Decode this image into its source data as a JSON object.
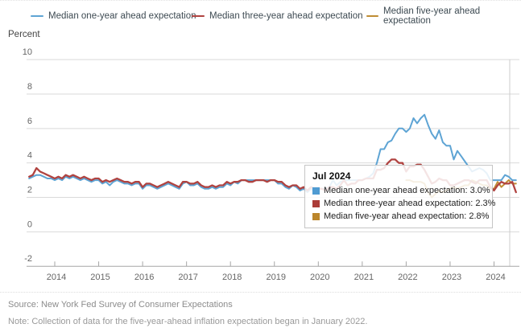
{
  "legend": {
    "items": [
      {
        "label": "Median one-year ahead expectation",
        "color": "#5ea4d4"
      },
      {
        "label": "Median three-year ahead expectation",
        "color": "#b04340"
      },
      {
        "label": "Median five-year ahead expectation",
        "color": "#bf8c33"
      }
    ]
  },
  "y_axis": {
    "title": "Percent"
  },
  "tooltip": {
    "title": "Jul 2024",
    "rows": [
      {
        "label": "Median one-year ahead expectation",
        "value": "3.0%",
        "text": "Median one-year ahead expectation: 3.0%",
        "color": "#4f9bd2"
      },
      {
        "label": "Median three-year ahead expectation",
        "value": "2.3%",
        "text": "Median three-year ahead expectation: 2.3%",
        "color": "#ab3c38"
      },
      {
        "label": "Median five-year ahead expectation",
        "value": "2.8%",
        "text": "Median five-year ahead expectation: 2.8%",
        "color": "#bb862b"
      }
    ]
  },
  "footer": {
    "source": "Source: New York Fed Survey of Consumer Expectations",
    "note": "Note: Collection of data for the five-year-ahead inflation expectation began in January 2022."
  },
  "chart_data": {
    "type": "line",
    "title": "",
    "xlabel": "",
    "ylabel": "Percent",
    "ylim": [
      -2,
      10
    ],
    "yticks": [
      10,
      8,
      6,
      4,
      2,
      0,
      -2
    ],
    "xtick_years": [
      2014,
      2015,
      2016,
      2017,
      2018,
      2019,
      2020,
      2021,
      2022,
      2023,
      2024
    ],
    "x_start": "2013-06",
    "x_end": "2024-07",
    "frequency": "monthly",
    "grid": "horizontal",
    "legend_position": "top",
    "hover": {
      "month": "Jul 2024",
      "one_year": 3.0,
      "three_year": 2.3,
      "five_year": 2.8
    },
    "series": [
      {
        "name": "Median one-year ahead expectation",
        "color": "#5ea4d4",
        "start": "2013-06",
        "values": [
          3.1,
          3.2,
          3.3,
          3.3,
          3.2,
          3.1,
          3.1,
          3.0,
          3.1,
          3.0,
          3.2,
          3.1,
          3.2,
          3.1,
          3.0,
          3.1,
          3.0,
          2.9,
          3.0,
          3.0,
          2.8,
          2.9,
          2.7,
          2.9,
          3.0,
          2.9,
          2.8,
          2.8,
          2.7,
          2.8,
          2.8,
          2.5,
          2.7,
          2.7,
          2.6,
          2.5,
          2.6,
          2.7,
          2.8,
          2.7,
          2.6,
          2.5,
          2.8,
          2.9,
          2.7,
          2.7,
          2.8,
          2.6,
          2.5,
          2.5,
          2.6,
          2.5,
          2.6,
          2.6,
          2.8,
          2.7,
          2.9,
          2.8,
          3.0,
          3.0,
          3.0,
          3.0,
          3.0,
          3.0,
          3.0,
          3.0,
          3.0,
          3.0,
          2.8,
          2.8,
          2.6,
          2.5,
          2.7,
          2.6,
          2.4,
          2.5,
          2.3,
          2.5,
          2.3,
          2.5,
          2.5,
          2.5,
          2.6,
          3.0,
          2.7,
          2.9,
          3.0,
          3.0,
          3.0,
          3.0,
          3.0,
          3.0,
          3.1,
          3.2,
          3.4,
          4.0,
          4.8,
          4.8,
          5.2,
          5.3,
          5.7,
          6.0,
          6.0,
          5.8,
          6.0,
          6.6,
          6.3,
          6.6,
          6.8,
          6.2,
          5.7,
          5.4,
          5.9,
          5.2,
          5.0,
          5.0,
          4.2,
          4.7,
          4.4,
          4.1,
          3.8,
          3.5,
          3.6,
          3.7,
          3.6,
          3.4,
          3.0,
          3.0,
          3.0,
          3.0,
          3.3,
          3.2,
          3.0,
          3.0
        ]
      },
      {
        "name": "Median three-year ahead expectation",
        "color": "#b04340",
        "start": "2013-06",
        "values": [
          3.2,
          3.3,
          3.7,
          3.5,
          3.4,
          3.3,
          3.2,
          3.1,
          3.2,
          3.1,
          3.3,
          3.2,
          3.3,
          3.2,
          3.1,
          3.2,
          3.1,
          3.0,
          3.1,
          3.1,
          2.9,
          3.0,
          2.9,
          3.0,
          3.1,
          3.0,
          2.9,
          2.9,
          2.8,
          2.9,
          2.9,
          2.6,
          2.8,
          2.8,
          2.7,
          2.6,
          2.7,
          2.8,
          2.9,
          2.8,
          2.7,
          2.6,
          2.9,
          2.9,
          2.8,
          2.8,
          2.9,
          2.7,
          2.6,
          2.6,
          2.7,
          2.6,
          2.7,
          2.7,
          2.9,
          2.8,
          2.9,
          2.9,
          3.0,
          3.0,
          2.9,
          2.9,
          3.0,
          3.0,
          3.0,
          2.9,
          3.0,
          3.0,
          2.9,
          2.9,
          2.7,
          2.6,
          2.7,
          2.7,
          2.5,
          2.6,
          2.4,
          2.6,
          2.5,
          2.5,
          2.5,
          2.4,
          2.6,
          2.6,
          2.5,
          2.7,
          3.0,
          2.7,
          2.8,
          2.8,
          3.0,
          3.0,
          3.1,
          3.1,
          3.1,
          3.6,
          3.6,
          3.7,
          4.0,
          4.2,
          4.2,
          4.0,
          4.0,
          3.5,
          3.8,
          3.8,
          3.9,
          3.9,
          3.6,
          3.2,
          2.8,
          2.9,
          3.1,
          3.0,
          3.0,
          2.7,
          2.7,
          2.8,
          2.9,
          3.0,
          3.0,
          2.9,
          2.8,
          3.0,
          3.0,
          3.0,
          2.6,
          2.4,
          2.7,
          2.9,
          2.8,
          2.8,
          2.9,
          2.3
        ]
      },
      {
        "name": "Median five-year ahead expectation",
        "color": "#bf8c33",
        "start": "2022-01",
        "values": [
          3.0,
          3.0,
          2.9,
          2.9,
          2.9,
          2.8,
          2.3,
          2.0,
          2.2,
          2.4,
          2.3,
          2.4,
          2.5,
          2.6,
          2.5,
          2.6,
          2.7,
          2.7,
          3.0,
          2.9,
          2.8,
          2.7,
          2.7,
          2.5,
          2.5,
          2.9,
          2.6,
          2.8,
          3.0,
          2.8,
          2.8
        ]
      }
    ]
  }
}
